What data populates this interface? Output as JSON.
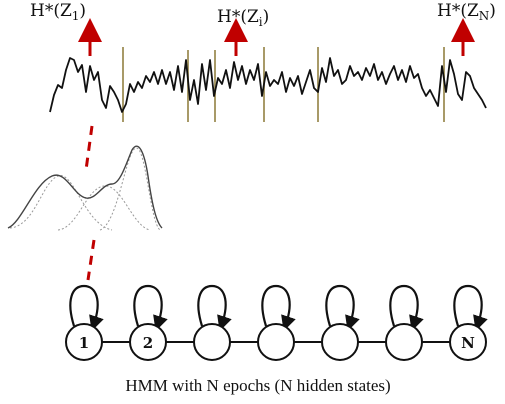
{
  "top_labels": [
    {
      "label": "H*(Z",
      "sub": "1",
      "close": ")"
    },
    {
      "label": "H*(Z",
      "sub": "i",
      "close": ")"
    },
    {
      "label": "H*(Z",
      "sub": "N",
      "close": ")"
    }
  ],
  "colors": {
    "arrow": "#c00000",
    "dash": "#c00000",
    "divider": "#a89a68",
    "signal": "#111111",
    "gaussian_fill": "#ffffff",
    "gaussian_component": "#9a9a9a"
  },
  "chain": {
    "state_count": 7,
    "labels": [
      "1",
      "2",
      "",
      "",
      "",
      "",
      "N"
    ]
  },
  "caption": "HMM with N epochs (N hidden states)"
}
